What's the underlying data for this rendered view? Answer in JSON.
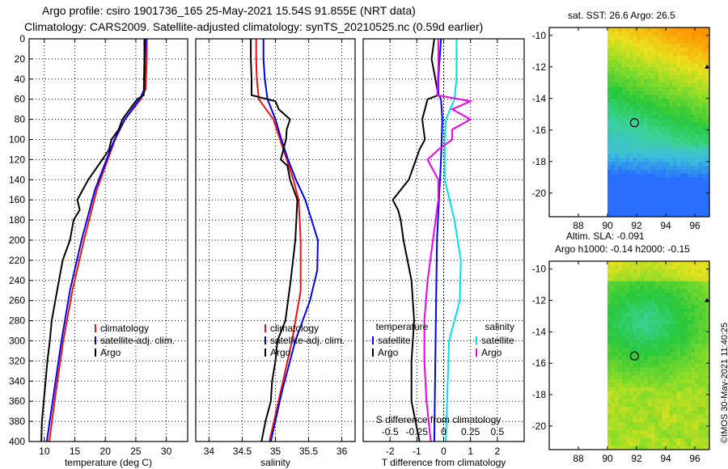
{
  "header": {
    "title_line1": "Argo profile: csiro 1901736_165 25-May-2021 15.54S 91.855E (NRT data)",
    "title_line2": "Climatology: CARS2009. Satellite-adjusted climatology: synTS_20210525.nc (0.59d earlier)"
  },
  "colors": {
    "climatology": "#ee1111",
    "satellite": "#0000ee",
    "argo": "#000000",
    "sat_salinity": "#00e0ee",
    "argo_salinity": "#ee00ee"
  },
  "chart_data": [
    {
      "type": "line",
      "id": "temperature",
      "xlabel": "temperature (deg C)",
      "ylabel": "",
      "xlim": [
        7.5,
        33.5
      ],
      "ylim": [
        0,
        400
      ],
      "xticks": [
        10,
        15,
        20,
        25,
        30
      ],
      "yticks": [
        0,
        20,
        40,
        60,
        80,
        100,
        120,
        140,
        160,
        180,
        200,
        220,
        240,
        260,
        280,
        300,
        320,
        340,
        360,
        380,
        400
      ],
      "legend": [
        "climatology",
        "satellite-adj. clim.",
        "Argo"
      ],
      "series": [
        {
          "name": "climatology",
          "depth": [
            0,
            20,
            50,
            60,
            80,
            100,
            120,
            150,
            200,
            250,
            300,
            350,
            400
          ],
          "values": [
            26.8,
            26.8,
            26.6,
            25.8,
            23.2,
            21.6,
            20.4,
            18.6,
            16.5,
            14.6,
            13.1,
            11.9,
            10.8
          ]
        },
        {
          "name": "satellite-adj. clim.",
          "depth": [
            0,
            20,
            50,
            58,
            80,
            100,
            120,
            150,
            200,
            250,
            300,
            350,
            400
          ],
          "values": [
            26.6,
            26.5,
            26.4,
            25.8,
            23.2,
            21.5,
            20.2,
            18.3,
            16.1,
            14.2,
            12.8,
            11.6,
            10.4
          ]
        },
        {
          "name": "Argo",
          "depth": [
            0,
            20,
            56,
            60,
            70,
            80,
            90,
            100,
            110,
            120,
            140,
            160,
            170,
            180,
            200,
            220,
            240,
            260,
            280,
            300,
            320,
            340,
            360,
            380,
            400
          ],
          "values": [
            26.4,
            26.4,
            26.3,
            25.2,
            24.0,
            22.8,
            22.2,
            21.0,
            20.6,
            19.5,
            17.2,
            15.4,
            15.8,
            14.8,
            14.2,
            13.0,
            12.4,
            11.8,
            11.2,
            10.9,
            10.5,
            10.2,
            9.9,
            9.6,
            9.5
          ]
        }
      ]
    },
    {
      "type": "line",
      "id": "salinity",
      "xlabel": "salinity",
      "xlim": [
        33.8,
        36.2
      ],
      "ylim": [
        0,
        400
      ],
      "xticks": [
        34,
        34.5,
        35,
        35.5,
        36
      ],
      "legend": [
        "climatology",
        "satellite-adj. clim.",
        "Argo"
      ],
      "series": [
        {
          "name": "climatology",
          "depth": [
            0,
            20,
            40,
            60,
            80,
            100,
            120,
            140,
            160,
            200,
            250,
            300,
            350,
            400
          ],
          "values": [
            34.71,
            34.71,
            34.72,
            34.75,
            34.97,
            35.07,
            35.17,
            35.27,
            35.35,
            35.38,
            35.38,
            35.25,
            35.08,
            34.91
          ]
        },
        {
          "name": "satellite-adj. clim.",
          "depth": [
            0,
            20,
            40,
            60,
            80,
            100,
            120,
            140,
            160,
            200,
            230,
            260,
            300,
            350,
            400
          ],
          "values": [
            34.82,
            34.82,
            34.84,
            34.88,
            35.0,
            35.09,
            35.19,
            35.31,
            35.45,
            35.64,
            35.63,
            35.52,
            35.3,
            35.1,
            34.93
          ]
        },
        {
          "name": "Argo",
          "depth": [
            0,
            20,
            40,
            56,
            62,
            70,
            80,
            90,
            100,
            110,
            120,
            126,
            140,
            160,
            200,
            240,
            280,
            300,
            320,
            340,
            360,
            380,
            400
          ],
          "values": [
            34.63,
            34.63,
            34.64,
            34.64,
            35.0,
            35.05,
            35.22,
            35.17,
            35.16,
            35.12,
            35.08,
            35.18,
            35.22,
            35.33,
            35.3,
            35.23,
            35.15,
            35.03,
            35.0,
            34.95,
            34.93,
            34.85,
            34.79
          ]
        }
      ]
    },
    {
      "type": "line",
      "id": "difference",
      "xlabel": "T difference from climatology",
      "xlabel_top": "S difference from climatology",
      "xlim": [
        -3,
        3
      ],
      "xlim_top": [
        -0.75,
        0.75
      ],
      "ylim": [
        0,
        400
      ],
      "xticks": [
        -2,
        -1,
        0,
        1,
        2
      ],
      "xtick_labels": [
        "-2",
        "-1",
        "0",
        "1",
        "2"
      ],
      "xticks_top": [
        -0.5,
        -0.25,
        0,
        0.25,
        0.5
      ],
      "xtick_labels_top": [
        "-0.5",
        "-0.25",
        "0",
        "0.25",
        "0.5"
      ],
      "legend_temperature": {
        "title": "temperature",
        "entries": [
          "satellite",
          "Argo"
        ]
      },
      "legend_salinity": {
        "title": "salinity",
        "entries": [
          "satellite",
          "Argo"
        ]
      },
      "series": [
        {
          "name": "T satellite",
          "axis": "T",
          "depth": [
            0,
            40,
            55,
            60,
            80,
            120,
            200,
            300,
            400
          ],
          "values": [
            -0.1,
            -0.2,
            -0.2,
            -0.1,
            -0.05,
            -0.1,
            -0.25,
            -0.3,
            -0.35
          ]
        },
        {
          "name": "T Argo",
          "axis": "T",
          "depth": [
            0,
            20,
            56,
            60,
            80,
            100,
            110,
            140,
            160,
            170,
            180,
            200,
            240,
            280,
            320,
            360,
            400
          ],
          "values": [
            -0.35,
            -0.45,
            -0.2,
            -0.6,
            -0.8,
            -0.7,
            -0.9,
            -1.3,
            -1.9,
            -1.7,
            -1.6,
            -1.5,
            -1.2,
            -1.1,
            -1.2,
            -1.2,
            -0.9
          ]
        },
        {
          "name": "S satellite",
          "axis": "S",
          "depth": [
            0,
            40,
            60,
            80,
            100,
            140,
            180,
            220,
            260,
            300,
            400
          ],
          "values": [
            0.12,
            0.12,
            0.1,
            0.02,
            0.01,
            0.01,
            0.1,
            0.16,
            0.15,
            0.05,
            0.02
          ]
        },
        {
          "name": "S Argo",
          "axis": "S",
          "depth": [
            0,
            30,
            56,
            62,
            70,
            80,
            90,
            100,
            110,
            120,
            140,
            160,
            200,
            240,
            280,
            320,
            360,
            400
          ],
          "values": [
            -0.05,
            -0.05,
            -0.06,
            0.25,
            0.08,
            0.25,
            0.08,
            0.08,
            -0.05,
            -0.15,
            -0.05,
            -0.05,
            -0.1,
            -0.15,
            -0.18,
            -0.18,
            -0.16,
            -0.12
          ]
        }
      ]
    },
    {
      "type": "heatmap",
      "id": "sst_map",
      "title": "sat. SST: 26.6 Argo: 26.5",
      "xlim": [
        86,
        97
      ],
      "ylim": [
        -21.5,
        -9.5
      ],
      "xticks": [
        88,
        90,
        92,
        94,
        96
      ],
      "yticks": [
        -10,
        -12,
        -14,
        -16,
        -18,
        -20
      ],
      "data_lon_start": 90,
      "float_position": {
        "lon": 91.855,
        "lat": -15.54
      }
    },
    {
      "type": "heatmap",
      "id": "sla_map",
      "title_line1": "Altim. SLA: -0.091",
      "title_line2": "Argo h1000: -0.14 h2000: -0.15",
      "xlim": [
        86,
        97
      ],
      "ylim": [
        -21.5,
        -9.5
      ],
      "xticks": [
        88,
        90,
        92,
        94,
        96
      ],
      "yticks": [
        -10,
        -12,
        -14,
        -16,
        -18,
        -20
      ],
      "data_lon_start": 90,
      "float_position": {
        "lon": 91.855,
        "lat": -15.54
      }
    }
  ],
  "footer": {
    "stamp": "©IMOS 30-May-2021 11:40:25"
  }
}
